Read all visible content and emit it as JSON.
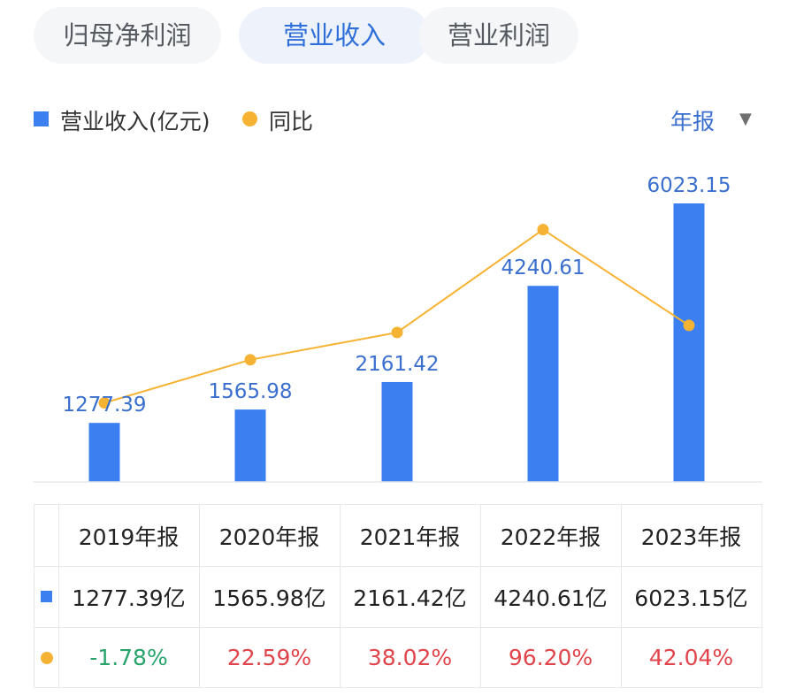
{
  "tabs": [
    {
      "label": "归母净利润",
      "active": false
    },
    {
      "label": "营业收入",
      "active": true
    },
    {
      "label": "营业利润",
      "active": false
    }
  ],
  "legend": {
    "bar_label": "营业收入(亿元)",
    "line_label": "同比"
  },
  "period_selector": {
    "label": "年报",
    "caret": "▼"
  },
  "colors": {
    "bar": "#3b7ff0",
    "line": "#f6b232",
    "bar_label": "#3a6fce",
    "positive": "#e0454b",
    "negative": "#27a36b",
    "active_tab_text": "#2f6fd9"
  },
  "chart_data": {
    "type": "bar",
    "categories": [
      "2019年报",
      "2020年报",
      "2021年报",
      "2022年报",
      "2023年报"
    ],
    "series": [
      {
        "name": "营业收入(亿元)",
        "type": "bar",
        "values": [
          1277.39,
          1565.98,
          2161.42,
          4240.61,
          6023.15
        ]
      },
      {
        "name": "同比",
        "type": "line",
        "values": [
          -1.78,
          22.59,
          38.02,
          96.2,
          42.04
        ]
      }
    ],
    "data_labels": [
      "1277.39",
      "1565.98",
      "2161.42",
      "4240.61",
      "6023.15"
    ]
  },
  "table": {
    "headers": [
      "2019年报",
      "2020年报",
      "2021年报",
      "2022年报",
      "2023年报"
    ],
    "revenue": [
      "1277.39亿",
      "1565.98亿",
      "2161.42亿",
      "4240.61亿",
      "6023.15亿"
    ],
    "yoy": [
      "-1.78%",
      "22.59%",
      "38.02%",
      "96.20%",
      "42.04%"
    ]
  }
}
